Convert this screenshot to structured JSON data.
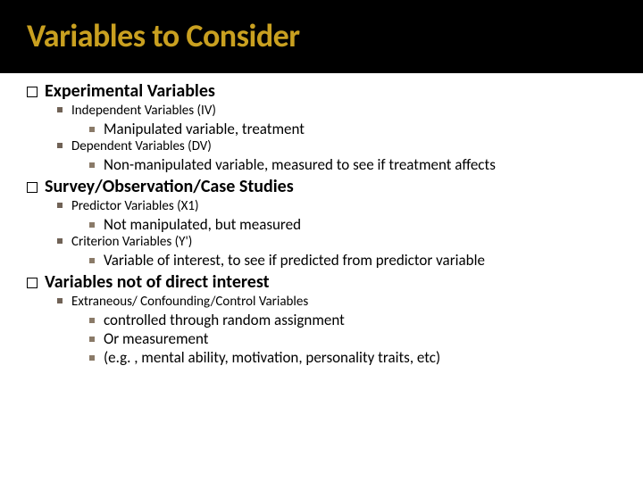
{
  "title": "Variables to Consider",
  "colors": {
    "title_band_bg": "#000000",
    "title_text": "#c9a020",
    "body_bg": "#ffffff",
    "body_text": "#000000",
    "level2_bullet": "#706256",
    "level3_bullet": "#8a7a68"
  },
  "typography": {
    "title_fontsize": 36,
    "title_weight": 700,
    "level1_fontsize": 20,
    "level1_weight": 700,
    "level2_fontsize": 15,
    "level2_weight": 400,
    "level3_fontsize": 17,
    "level3_weight": 400,
    "font_family": "Calibri"
  },
  "sections": [
    {
      "heading": "Experimental  Variables",
      "items": [
        {
          "label": "Independent Variables (IV)",
          "subitems": [
            "Manipulated variable, treatment"
          ]
        },
        {
          "label": "Dependent Variables (DV)",
          "subitems": [
            "Non-manipulated variable, measured to see if treatment affects"
          ]
        }
      ]
    },
    {
      "heading": "Survey/Observation/Case Studies",
      "items": [
        {
          "label": "Predictor Variables (X1)",
          "subitems": [
            "Not manipulated, but measured"
          ]
        },
        {
          "label": "Criterion Variables (Y')",
          "subitems": [
            "Variable of interest, to see if predicted from predictor variable"
          ]
        }
      ]
    },
    {
      "heading": "Variables not of direct interest",
      "items": [
        {
          "label": "Extraneous/ Confounding/Control Variables",
          "subitems": [
            "controlled through random assignment",
            "Or measurement",
            "(e.g. , mental ability, motivation, personality traits, etc)"
          ]
        }
      ]
    }
  ]
}
